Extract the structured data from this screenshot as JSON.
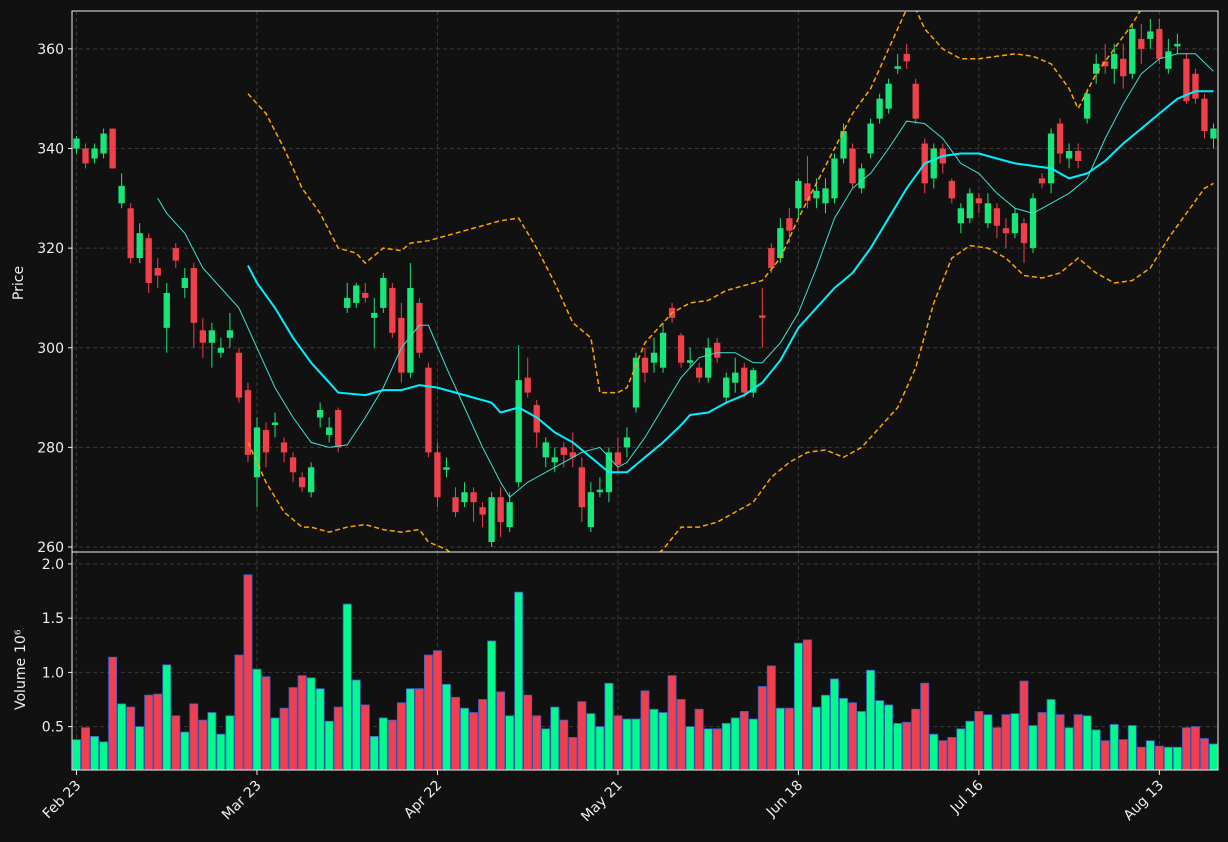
{
  "chart_data": [
    {
      "type": "candlestick",
      "ylabel": "Price",
      "up_color": "#19e67a",
      "down_color": "#f0404a",
      "grid": true,
      "ylim": [
        259,
        367.6
      ],
      "yticks": [
        260,
        280,
        300,
        320,
        340,
        360
      ],
      "open": [
        340,
        340,
        338,
        339,
        344,
        329,
        328,
        318,
        322,
        316,
        304,
        320,
        312,
        316,
        303.5,
        301,
        299,
        302,
        299,
        291.5,
        274,
        283.5,
        284.5,
        281,
        278,
        274,
        271,
        286,
        282.5,
        287.5,
        308,
        309,
        311,
        306,
        308,
        312,
        306,
        295,
        309,
        296,
        279,
        275.5,
        270,
        269,
        271,
        268,
        261,
        270,
        264,
        273,
        294,
        288.5,
        278,
        277,
        280,
        279,
        276,
        264,
        271,
        271,
        279,
        280,
        288,
        298,
        297,
        296,
        308,
        302.5,
        297,
        296,
        294,
        301,
        290,
        293,
        296,
        291,
        306.5,
        320,
        318,
        326,
        328,
        333,
        330,
        329,
        330,
        338,
        340,
        332,
        339,
        346,
        348,
        356,
        359,
        353,
        341,
        334,
        340,
        333.5,
        325,
        326,
        330,
        325,
        328,
        324,
        323,
        325,
        320,
        334,
        333,
        345,
        338,
        339.5,
        346,
        355,
        357.5,
        356,
        358,
        355,
        362,
        362,
        364,
        356,
        360.5,
        358,
        355,
        350,
        342
      ],
      "high": [
        342.5,
        341,
        341,
        344,
        344,
        335,
        329,
        325,
        323,
        318,
        313,
        321,
        316,
        317,
        306,
        305,
        302,
        307,
        300,
        293,
        286,
        285,
        287,
        282,
        279,
        275,
        277,
        289,
        286,
        288,
        313,
        313,
        313,
        310,
        315,
        313,
        309,
        317,
        310,
        297,
        281,
        278,
        272,
        273,
        272,
        269,
        271,
        272,
        271,
        300.5,
        298,
        289.5,
        282,
        280,
        281,
        283,
        278,
        273,
        274,
        280,
        282,
        284,
        299,
        300,
        302,
        305,
        309,
        303,
        300,
        297,
        302,
        302,
        295,
        298,
        297,
        296,
        312,
        321,
        326,
        328,
        334,
        338.5,
        334,
        334,
        339,
        345,
        341,
        337,
        346,
        351,
        354,
        359,
        361,
        354,
        342,
        341,
        341,
        334,
        329,
        332,
        331,
        331,
        329,
        326,
        328,
        326,
        331,
        335,
        344,
        346,
        341,
        341,
        352,
        359,
        361,
        361,
        361,
        365,
        365,
        366,
        366,
        362,
        363,
        359,
        356,
        351,
        345
      ],
      "low": [
        339,
        336,
        337,
        338,
        336,
        328,
        317,
        317,
        311,
        312,
        299,
        316,
        310,
        300,
        298,
        296,
        298,
        300,
        289,
        277,
        268,
        276,
        282,
        277,
        273,
        271,
        270,
        284,
        281,
        279,
        307,
        308,
        309,
        300,
        307,
        302,
        293,
        294,
        298,
        278,
        268,
        274,
        266,
        268,
        265,
        264,
        260,
        262,
        263,
        272,
        290,
        280,
        276,
        275,
        276,
        276,
        265,
        263,
        270,
        269,
        275,
        278,
        287,
        293,
        295,
        295,
        305,
        296,
        296,
        293,
        293,
        297,
        289,
        291,
        290,
        290,
        300,
        315,
        317,
        321,
        326,
        328,
        328,
        327,
        329,
        337,
        332,
        331,
        338,
        345,
        347,
        355,
        356,
        345,
        331,
        332,
        335,
        329,
        323,
        325,
        327,
        324,
        322,
        320,
        322,
        317,
        319,
        332,
        331,
        337,
        336,
        336,
        345,
        353,
        355,
        353,
        352,
        354,
        357,
        360,
        357,
        355,
        359,
        349,
        349,
        342,
        340
      ],
      "close": [
        342,
        337,
        340,
        343,
        336,
        332.5,
        318,
        323,
        313,
        314.5,
        311,
        317.5,
        314,
        305,
        301,
        303.5,
        300,
        303.5,
        290,
        278.5,
        284,
        279,
        285,
        279,
        275,
        272,
        276,
        287.5,
        284,
        280,
        310,
        312.5,
        310,
        307,
        314,
        303,
        295,
        312,
        299,
        279,
        270,
        276,
        267,
        271,
        269,
        266.5,
        270,
        265,
        269,
        293.5,
        291,
        283,
        281,
        278,
        278.5,
        278,
        268,
        271,
        271.5,
        279,
        276.5,
        282,
        298,
        295,
        299,
        303,
        306,
        297,
        297.5,
        294,
        300,
        298,
        294,
        295,
        291,
        295.5,
        306,
        316,
        324,
        323.5,
        333.5,
        329.5,
        331.5,
        332,
        338,
        343.5,
        333,
        336,
        345,
        350,
        353,
        356.5,
        357.5,
        346,
        333,
        340,
        337,
        330,
        328,
        331,
        329,
        329,
        324.5,
        323,
        327,
        321,
        330,
        333,
        343,
        339,
        339.5,
        337.5,
        351,
        357,
        356.5,
        359,
        354.5,
        364,
        360,
        363.5,
        358,
        359.5,
        361,
        349.5,
        350,
        343.5,
        344
      ],
      "series": [
        {
          "color": "#40e0d0",
          "width": 1,
          "x": [
            9,
            10,
            12,
            14,
            16,
            18,
            20,
            22,
            24,
            26,
            28,
            30,
            32,
            34,
            36,
            38,
            39,
            41,
            43,
            45,
            47,
            48,
            50,
            52,
            54,
            56,
            58,
            60,
            61,
            63,
            65,
            67,
            69,
            71,
            73,
            75,
            76,
            78,
            80,
            82,
            84,
            86,
            88,
            90,
            92,
            94,
            96,
            98,
            100,
            102,
            104,
            106,
            108,
            110,
            112,
            114,
            116,
            118,
            120,
            122,
            124,
            126
          ],
          "values": [
            330,
            327,
            323,
            316,
            312,
            308,
            300,
            292,
            286,
            281,
            280,
            280.5,
            286,
            292,
            300,
            304.5,
            304.5,
            296,
            288,
            280,
            273,
            270,
            273,
            275,
            277,
            279,
            280,
            276,
            277,
            282,
            288,
            294,
            298,
            299,
            299,
            297,
            297,
            301,
            307,
            316,
            326,
            332,
            335,
            340,
            345.5,
            345,
            342,
            337,
            335,
            331,
            328,
            327,
            329,
            331,
            334,
            342,
            349,
            355,
            358,
            359,
            359,
            355.5
          ]
        },
        {
          "color": "#00f0ff",
          "width": 2,
          "x": [
            19,
            20,
            22,
            24,
            26,
            28,
            29,
            32,
            34,
            36,
            38,
            40,
            42,
            44,
            46,
            47,
            49,
            51,
            53,
            55,
            57,
            59,
            61,
            63,
            65,
            67,
            68,
            70,
            72,
            74,
            76,
            78,
            80,
            82,
            84,
            86,
            88,
            90,
            92,
            94,
            96,
            98,
            100,
            102,
            104,
            106,
            108,
            110,
            112,
            114,
            116,
            118,
            120,
            122,
            124,
            126
          ],
          "values": [
            316.5,
            313,
            308,
            302,
            297,
            293,
            291,
            290.5,
            291.5,
            291.5,
            292.5,
            292,
            291,
            290,
            289,
            287,
            288,
            286,
            283,
            281,
            278,
            275,
            275,
            278,
            281,
            284.5,
            286.5,
            287,
            289,
            290.5,
            293,
            297.5,
            304,
            308,
            312,
            315,
            320,
            326,
            332,
            337,
            338.5,
            339,
            339,
            338,
            337,
            336.5,
            336,
            334,
            335,
            337.5,
            341,
            344,
            347,
            350,
            351.5,
            351.5
          ]
        },
        {
          "color": "#ffa500",
          "width": 1.5,
          "dash": "5,3",
          "x": [
            19,
            21,
            23,
            25,
            27,
            29,
            31,
            32,
            34,
            36,
            37,
            39,
            41,
            43,
            45,
            47,
            49,
            51,
            53,
            55,
            57,
            58,
            60,
            61,
            63,
            66,
            68,
            70,
            72,
            74,
            76,
            78,
            80,
            82,
            84,
            86,
            88,
            90,
            92,
            93,
            94,
            96,
            98,
            100,
            102,
            104,
            106,
            108,
            110,
            111,
            113,
            115,
            117,
            118
          ],
          "values": [
            351,
            347,
            340,
            332,
            327,
            320,
            319,
            317,
            320,
            319.5,
            321,
            321.5,
            322.5,
            323.5,
            324.5,
            325.5,
            326,
            320,
            313,
            305,
            302,
            291,
            291,
            292,
            301,
            307,
            309,
            309.5,
            311.5,
            312.5,
            313.5,
            318,
            326,
            333,
            340,
            347,
            352,
            360,
            368,
            368,
            364,
            360,
            358,
            358,
            358.5,
            359,
            358.5,
            357,
            352,
            348,
            355,
            360,
            365,
            368
          ]
        },
        {
          "color": "#ffa500",
          "width": 1.5,
          "dash": "5,3",
          "x": [
            19,
            21,
            23,
            25,
            26,
            28,
            30,
            32,
            34,
            36,
            38,
            39,
            41,
            42,
            44,
            47,
            50,
            53,
            56,
            58,
            60,
            62,
            64,
            65,
            67,
            69,
            71,
            73,
            75,
            77,
            79,
            81,
            83,
            85,
            87,
            89,
            91,
            93,
            95,
            97,
            99,
            101,
            103,
            105,
            107,
            109,
            111,
            113,
            115,
            117,
            119,
            121,
            123,
            125,
            126
          ],
          "values": [
            281,
            273,
            267,
            264,
            264,
            263,
            264,
            264.5,
            263.5,
            263,
            263.5,
            261,
            259.5,
            258,
            256,
            252,
            250,
            252,
            256,
            259,
            258,
            256,
            258,
            259.5,
            264,
            264,
            265,
            267,
            269,
            274,
            277,
            279,
            279.5,
            278,
            280,
            284,
            288,
            296,
            309,
            318,
            320.5,
            320,
            318,
            314.5,
            314,
            315,
            318,
            315,
            313,
            313.5,
            316,
            322,
            327,
            332,
            333
          ]
        }
      ]
    },
    {
      "type": "bar",
      "ylabel": "Volume",
      "scale_label": "10⁶",
      "up_color": "#00fa8c",
      "down_color": "#f04050",
      "edge_color": "#3a5fcd",
      "grid": true,
      "ylim": [
        0.1,
        2.11
      ],
      "yticks": [
        0.5,
        {
          "value": 1,
          "label": "1.0"
        },
        1.5,
        {
          "value": 2,
          "label": "2.0"
        }
      ],
      "categories": [
        "Feb 23",
        null,
        null,
        null,
        null,
        null,
        null,
        null,
        null,
        null,
        null,
        null,
        null,
        null,
        null,
        null,
        null,
        null,
        null,
        null,
        "Mar 23",
        null,
        null,
        null,
        null,
        null,
        null,
        null,
        null,
        null,
        null,
        null,
        null,
        null,
        null,
        null,
        null,
        null,
        null,
        null,
        "Apr 22",
        null,
        null,
        null,
        null,
        null,
        null,
        null,
        null,
        null,
        null,
        null,
        null,
        null,
        null,
        null,
        null,
        null,
        null,
        null,
        "May 21",
        null,
        null,
        null,
        null,
        null,
        null,
        null,
        null,
        null,
        null,
        null,
        null,
        null,
        null,
        null,
        null,
        null,
        null,
        null,
        "Jun 18",
        null,
        null,
        null,
        null,
        null,
        null,
        null,
        null,
        null,
        null,
        null,
        null,
        null,
        null,
        null,
        null,
        null,
        null,
        null,
        "Jul 16",
        null,
        null,
        null,
        null,
        null,
        null,
        null,
        null,
        null,
        null,
        null,
        null,
        null,
        null,
        null,
        null,
        null,
        null,
        null,
        "Aug 13",
        null,
        null,
        null,
        null,
        null,
        null
      ],
      "values": [
        0.38,
        0.49,
        0.41,
        0.36,
        1.14,
        0.71,
        0.68,
        0.5,
        0.79,
        0.8,
        1.07,
        0.6,
        0.45,
        0.71,
        0.56,
        0.63,
        0.43,
        0.6,
        1.16,
        1.9,
        1.03,
        0.96,
        0.58,
        0.67,
        0.86,
        0.97,
        0.95,
        0.85,
        0.55,
        0.68,
        1.63,
        0.93,
        0.7,
        0.41,
        0.58,
        0.56,
        0.72,
        0.85,
        0.85,
        1.16,
        1.2,
        0.89,
        0.77,
        0.67,
        0.63,
        0.75,
        1.29,
        0.82,
        0.6,
        1.74,
        0.79,
        0.6,
        0.48,
        0.68,
        0.56,
        0.4,
        0.73,
        0.62,
        0.5,
        0.9,
        0.6,
        0.57,
        0.57,
        0.83,
        0.66,
        0.63,
        0.97,
        0.75,
        0.5,
        0.66,
        0.48,
        0.48,
        0.53,
        0.58,
        0.64,
        0.57,
        0.87,
        1.06,
        0.67,
        0.67,
        1.27,
        1.3,
        0.68,
        0.79,
        0.94,
        0.76,
        0.72,
        0.64,
        1.02,
        0.74,
        0.7,
        0.53,
        0.54,
        0.66,
        0.9,
        0.43,
        0.37,
        0.4,
        0.48,
        0.55,
        0.64,
        0.61,
        0.49,
        0.61,
        0.62,
        0.92,
        0.51,
        0.63,
        0.75,
        0.61,
        0.49,
        0.61,
        0.6,
        0.47,
        0.37,
        0.52,
        0.38,
        0.51,
        0.31,
        0.37,
        0.32,
        0.31,
        0.31,
        0.49,
        0.5,
        0.39,
        0.34
      ]
    }
  ]
}
